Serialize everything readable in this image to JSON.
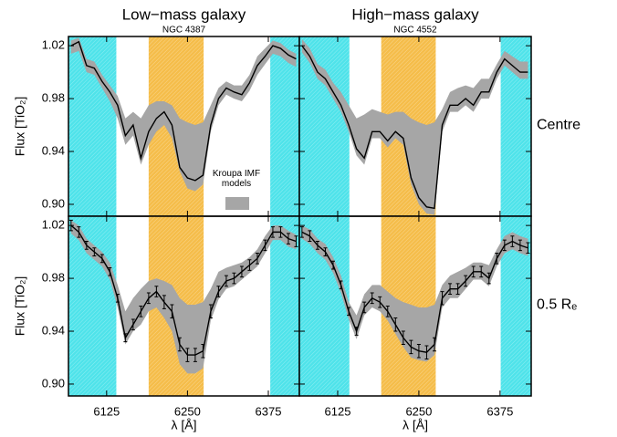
{
  "chart_data": [
    {
      "type": "line",
      "title": "Low−mass galaxy",
      "subtitle": "NGC 4387",
      "ylabel": "Flux [TiO₂]",
      "legend_label": "Kroupa IMF models",
      "xlim": [
        6066,
        6423
      ],
      "xticks": [
        6125,
        6250,
        6375
      ],
      "show_xtick_labels": false,
      "ylim": [
        0.891,
        1.027
      ],
      "yticks": [
        {
          "value": 0.9,
          "label": "0.90"
        },
        0.94,
        0.98,
        1.02
      ],
      "show_ytick_labels": true,
      "shaded": [
        {
          "range": [
            6066,
            6140
          ],
          "color": "#4fe3ea"
        },
        {
          "range": [
            6190,
            6275
          ],
          "color": "#f5bd4a"
        },
        {
          "range": [
            6378,
            6423
          ],
          "color": "#4fe3ea"
        }
      ],
      "x": [
        6070,
        6082,
        6094,
        6106,
        6118,
        6130,
        6142,
        6154,
        6166,
        6178,
        6190,
        6202,
        6214,
        6226,
        6238,
        6250,
        6262,
        6274,
        6286,
        6298,
        6310,
        6322,
        6334,
        6346,
        6358,
        6370,
        6382,
        6394,
        6406,
        6418
      ],
      "band": {
        "color": "#a6a6a6",
        "low": [
          1.014,
          1.016,
          1.0,
          0.998,
          0.988,
          0.978,
          0.965,
          0.945,
          0.952,
          0.93,
          0.945,
          0.955,
          0.96,
          0.95,
          0.925,
          0.912,
          0.91,
          0.915,
          0.955,
          0.975,
          0.983,
          0.98,
          0.978,
          0.986,
          0.998,
          1.006,
          1.014,
          1.012,
          1.007,
          1.004
        ],
        "high": [
          1.024,
          1.026,
          1.01,
          1.008,
          0.998,
          0.99,
          0.982,
          0.965,
          0.97,
          0.965,
          0.975,
          0.978,
          0.978,
          0.975,
          0.965,
          0.962,
          0.96,
          0.962,
          0.975,
          0.988,
          0.993,
          0.99,
          0.99,
          0.998,
          1.012,
          1.018,
          1.024,
          1.022,
          1.017,
          1.014
        ]
      },
      "series": [
        {
          "color": "#000000",
          "values": [
            1.02,
            1.023,
            1.005,
            1.003,
            0.993,
            0.985,
            0.975,
            0.952,
            0.96,
            0.935,
            0.955,
            0.965,
            0.97,
            0.96,
            0.928,
            0.92,
            0.918,
            0.922,
            0.96,
            0.98,
            0.988,
            0.985,
            0.983,
            0.992,
            1.005,
            1.012,
            1.02,
            1.018,
            1.013,
            1.01
          ]
        }
      ]
    },
    {
      "type": "line",
      "title": "High−mass galaxy",
      "subtitle": "NGC 4552",
      "row_label": "Centre",
      "xlim": [
        6066,
        6423
      ],
      "xticks": [
        6125,
        6250,
        6375
      ],
      "show_xtick_labels": false,
      "ylim": [
        0.891,
        1.027
      ],
      "yticks": [
        {
          "value": 0.9,
          "label": "0.90"
        },
        0.94,
        0.98,
        1.02
      ],
      "show_ytick_labels": false,
      "shaded": [
        {
          "range": [
            6066,
            6143
          ],
          "color": "#4fe3ea"
        },
        {
          "range": [
            6192,
            6276
          ],
          "color": "#f5bd4a"
        },
        {
          "range": [
            6376,
            6423
          ],
          "color": "#4fe3ea"
        }
      ],
      "x": [
        6070,
        6082,
        6094,
        6106,
        6118,
        6130,
        6142,
        6154,
        6166,
        6178,
        6190,
        6202,
        6214,
        6226,
        6238,
        6250,
        6262,
        6274,
        6286,
        6298,
        6310,
        6322,
        6334,
        6346,
        6358,
        6370,
        6382,
        6394,
        6406,
        6418
      ],
      "band": {
        "color": "#a6a6a6",
        "low": [
          1.015,
          1.007,
          0.995,
          0.99,
          0.98,
          0.97,
          0.955,
          0.937,
          0.93,
          0.95,
          0.95,
          0.943,
          0.95,
          0.945,
          0.915,
          0.9,
          0.893,
          0.892,
          0.955,
          0.97,
          0.97,
          0.975,
          0.97,
          0.98,
          0.98,
          0.995,
          1.005,
          1.0,
          0.995,
          0.995
        ],
        "high": [
          1.025,
          1.018,
          1.006,
          1.002,
          0.992,
          0.985,
          0.975,
          0.965,
          0.968,
          0.972,
          0.97,
          0.968,
          0.97,
          0.97,
          0.965,
          0.962,
          0.96,
          0.962,
          0.972,
          0.985,
          0.988,
          0.99,
          0.988,
          0.995,
          0.995,
          1.006,
          1.016,
          1.012,
          1.008,
          1.008
        ]
      },
      "series": [
        {
          "color": "#000000",
          "values": [
            1.02,
            1.012,
            1.0,
            0.995,
            0.985,
            0.975,
            0.96,
            0.942,
            0.935,
            0.955,
            0.955,
            0.948,
            0.955,
            0.95,
            0.92,
            0.905,
            0.898,
            0.897,
            0.96,
            0.975,
            0.975,
            0.98,
            0.975,
            0.985,
            0.985,
            1.0,
            1.01,
            1.005,
            1.0,
            1.0
          ]
        }
      ]
    },
    {
      "type": "line",
      "xlabel": "λ [Å]",
      "ylabel": "Flux [TiO₂]",
      "xlim": [
        6066,
        6423
      ],
      "xticks": [
        6125,
        6250,
        6375
      ],
      "show_xtick_labels": true,
      "ylim": [
        0.891,
        1.027
      ],
      "yticks": [
        {
          "value": 0.9,
          "label": "0.90"
        },
        0.94,
        0.98,
        1.02
      ],
      "show_ytick_labels": true,
      "shaded": [
        {
          "range": [
            6066,
            6140
          ],
          "color": "#4fe3ea"
        },
        {
          "range": [
            6190,
            6275
          ],
          "color": "#f5bd4a"
        },
        {
          "range": [
            6378,
            6423
          ],
          "color": "#4fe3ea"
        }
      ],
      "x": [
        6070,
        6082,
        6094,
        6106,
        6118,
        6130,
        6142,
        6154,
        6166,
        6178,
        6190,
        6202,
        6214,
        6226,
        6238,
        6250,
        6262,
        6274,
        6286,
        6298,
        6310,
        6322,
        6334,
        6346,
        6358,
        6370,
        6382,
        6394,
        6406,
        6418
      ],
      "band": {
        "color": "#a6a6a6",
        "low": [
          1.014,
          1.009,
          0.999,
          0.994,
          0.989,
          0.979,
          0.958,
          0.93,
          0.94,
          0.945,
          0.955,
          0.958,
          0.95,
          0.94,
          0.915,
          0.908,
          0.908,
          0.912,
          0.948,
          0.964,
          0.972,
          0.974,
          0.979,
          0.984,
          0.989,
          0.999,
          1.009,
          1.009,
          1.004,
          1.002
        ],
        "high": [
          1.024,
          1.02,
          1.01,
          1.005,
          1.0,
          0.992,
          0.975,
          0.955,
          0.965,
          0.972,
          0.978,
          0.98,
          0.978,
          0.975,
          0.965,
          0.96,
          0.96,
          0.962,
          0.972,
          0.985,
          0.988,
          0.99,
          0.992,
          0.996,
          1.002,
          1.012,
          1.02,
          1.02,
          1.016,
          1.013
        ]
      },
      "series": [
        {
          "color": "#000000",
          "values": [
            1.02,
            1.015,
            1.005,
            1.0,
            0.995,
            0.985,
            0.965,
            0.935,
            0.945,
            0.955,
            0.965,
            0.97,
            0.962,
            0.955,
            0.93,
            0.922,
            0.922,
            0.925,
            0.955,
            0.97,
            0.978,
            0.98,
            0.985,
            0.99,
            0.995,
            1.005,
            1.015,
            1.015,
            1.01,
            1.008
          ],
          "errors": [
            0.004,
            0.004,
            0.003,
            0.003,
            0.003,
            0.003,
            0.003,
            0.003,
            0.004,
            0.004,
            0.004,
            0.004,
            0.005,
            0.005,
            0.005,
            0.005,
            0.005,
            0.005,
            0.005,
            0.004,
            0.004,
            0.004,
            0.004,
            0.004,
            0.004,
            0.004,
            0.004,
            0.004,
            0.004,
            0.004
          ]
        }
      ]
    },
    {
      "type": "line",
      "xlabel": "λ [Å]",
      "row_label": "0.5 Rₑ",
      "xlim": [
        6066,
        6423
      ],
      "xticks": [
        6125,
        6250,
        6375
      ],
      "show_xtick_labels": true,
      "ylim": [
        0.891,
        1.027
      ],
      "yticks": [
        {
          "value": 0.9,
          "label": "0.90"
        },
        0.94,
        0.98,
        1.02
      ],
      "show_ytick_labels": false,
      "shaded": [
        {
          "range": [
            6066,
            6143
          ],
          "color": "#4fe3ea"
        },
        {
          "range": [
            6192,
            6276
          ],
          "color": "#f5bd4a"
        },
        {
          "range": [
            6376,
            6423
          ],
          "color": "#4fe3ea"
        }
      ],
      "x": [
        6070,
        6082,
        6094,
        6106,
        6118,
        6130,
        6142,
        6154,
        6166,
        6178,
        6190,
        6202,
        6214,
        6226,
        6238,
        6250,
        6262,
        6274,
        6286,
        6298,
        6310,
        6322,
        6334,
        6346,
        6358,
        6370,
        6382,
        6394,
        6406,
        6418
      ],
      "band": {
        "color": "#a6a6a6",
        "low": [
          1.01,
          1.006,
          0.999,
          0.994,
          0.984,
          0.969,
          0.949,
          0.934,
          0.952,
          0.958,
          0.955,
          0.948,
          0.938,
          0.928,
          0.92,
          0.918,
          0.917,
          0.922,
          0.958,
          0.965,
          0.965,
          0.972,
          0.979,
          0.979,
          0.974,
          0.989,
          0.999,
          1.002,
          0.999,
          0.997
        ],
        "high": [
          1.02,
          1.017,
          1.01,
          1.006,
          0.996,
          0.982,
          0.962,
          0.952,
          0.968,
          0.975,
          0.975,
          0.97,
          0.965,
          0.962,
          0.96,
          0.958,
          0.958,
          0.96,
          0.975,
          0.982,
          0.985,
          0.988,
          0.992,
          0.992,
          0.99,
          1.002,
          1.012,
          1.015,
          1.012,
          1.01
        ]
      },
      "series": [
        {
          "color": "#000000",
          "values": [
            1.015,
            1.012,
            1.005,
            1.0,
            0.99,
            0.975,
            0.955,
            0.94,
            0.958,
            0.965,
            0.962,
            0.955,
            0.945,
            0.935,
            0.928,
            0.925,
            0.924,
            0.93,
            0.965,
            0.972,
            0.972,
            0.978,
            0.985,
            0.985,
            0.98,
            0.995,
            1.005,
            1.008,
            1.005,
            1.003
          ],
          "errors": [
            0.004,
            0.004,
            0.003,
            0.003,
            0.003,
            0.003,
            0.003,
            0.003,
            0.004,
            0.004,
            0.004,
            0.004,
            0.005,
            0.005,
            0.005,
            0.005,
            0.005,
            0.005,
            0.005,
            0.004,
            0.004,
            0.004,
            0.004,
            0.004,
            0.004,
            0.004,
            0.004,
            0.004,
            0.004,
            0.004
          ]
        }
      ]
    }
  ]
}
